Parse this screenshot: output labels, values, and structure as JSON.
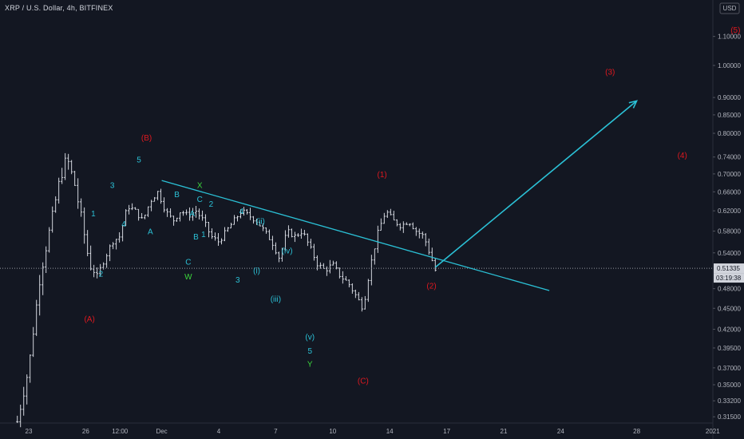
{
  "title": "XRP / U.S. Dollar, 4h, BITFINEX",
  "currency_button": "USD",
  "colors": {
    "background": "#131722",
    "candle": "#d1d4dc",
    "trendline": "#2bc1d6",
    "wave_red": "#e0181f",
    "wave_cyan": "#2bc1d6",
    "wave_green": "#3bd63b",
    "axis_text": "#b2b5be"
  },
  "chart_data": {
    "type": "candlestick",
    "y_scale": "log",
    "ylim": [
      0.3086,
      1.24
    ],
    "x_ticks": [
      {
        "label": "23",
        "t": 3
      },
      {
        "label": "26",
        "t": 18
      },
      {
        "label": "12:00",
        "t": 27
      },
      {
        "label": "Dec",
        "t": 38
      },
      {
        "label": "4",
        "t": 53
      },
      {
        "label": "7",
        "t": 68
      },
      {
        "label": "10",
        "t": 83
      },
      {
        "label": "14",
        "t": 98
      },
      {
        "label": "17",
        "t": 113
      },
      {
        "label": "21",
        "t": 128
      },
      {
        "label": "24",
        "t": 143
      },
      {
        "label": "28",
        "t": 163
      },
      {
        "label": "2021",
        "t": 183
      }
    ],
    "y_ticks": [
      "1.10000",
      "1.00000",
      "0.90000",
      "0.85000",
      "0.80000",
      "0.74000",
      "0.70000",
      "0.66000",
      "0.62000",
      "0.58000",
      "0.54000",
      "0.48000",
      "0.45000",
      "0.42000",
      "0.39500",
      "0.37000",
      "0.35000",
      "0.33200",
      "0.31500"
    ],
    "current_price": "0.51335",
    "countdown": "03:19:38",
    "candle_count": 132,
    "path": [
      [
        0,
        0.31
      ],
      [
        3,
        0.37
      ],
      [
        6,
        0.5
      ],
      [
        9,
        0.6
      ],
      [
        11,
        0.68
      ],
      [
        13,
        0.74
      ],
      [
        15,
        0.68
      ],
      [
        17,
        0.6
      ],
      [
        19,
        0.52
      ],
      [
        21,
        0.5
      ],
      [
        23,
        0.53
      ],
      [
        25,
        0.56
      ],
      [
        27,
        0.57
      ],
      [
        29,
        0.63
      ],
      [
        31,
        0.62
      ],
      [
        33,
        0.6
      ],
      [
        35,
        0.64
      ],
      [
        37,
        0.66
      ],
      [
        39,
        0.62
      ],
      [
        41,
        0.6
      ],
      [
        43,
        0.62
      ],
      [
        45,
        0.61
      ],
      [
        47,
        0.62
      ],
      [
        49,
        0.6
      ],
      [
        51,
        0.57
      ],
      [
        53,
        0.56
      ],
      [
        55,
        0.58
      ],
      [
        57,
        0.6
      ],
      [
        59,
        0.62
      ],
      [
        61,
        0.61
      ],
      [
        63,
        0.6
      ],
      [
        65,
        0.58
      ],
      [
        67,
        0.56
      ],
      [
        69,
        0.53
      ],
      [
        71,
        0.58
      ],
      [
        73,
        0.57
      ],
      [
        75,
        0.58
      ],
      [
        77,
        0.55
      ],
      [
        79,
        0.52
      ],
      [
        81,
        0.51
      ],
      [
        83,
        0.52
      ],
      [
        85,
        0.5
      ],
      [
        87,
        0.49
      ],
      [
        89,
        0.47
      ],
      [
        91,
        0.45
      ],
      [
        93,
        0.52
      ],
      [
        95,
        0.58
      ],
      [
        97,
        0.62
      ],
      [
        99,
        0.6
      ],
      [
        101,
        0.59
      ],
      [
        103,
        0.6
      ],
      [
        105,
        0.58
      ],
      [
        107,
        0.57
      ],
      [
        109,
        0.53
      ],
      [
        110,
        0.51
      ]
    ],
    "trendline": [
      {
        "t": 38,
        "price": 0.685
      },
      {
        "t": 140,
        "price": 0.477
      }
    ],
    "arrow": [
      {
        "t": 110,
        "price": 0.515
      },
      {
        "t": 163,
        "price": 0.89
      }
    ],
    "wave_labels": [
      {
        "text": "(B)",
        "t": 34,
        "price": 0.79,
        "color": "red"
      },
      {
        "text": "(A)",
        "t": 19,
        "price": 0.435,
        "color": "red"
      },
      {
        "text": "(C)",
        "t": 91,
        "price": 0.355,
        "color": "red"
      },
      {
        "text": "(1)",
        "t": 96,
        "price": 0.7,
        "color": "red"
      },
      {
        "text": "(2)",
        "t": 109,
        "price": 0.485,
        "color": "red"
      },
      {
        "text": "(3)",
        "t": 156,
        "price": 0.98,
        "color": "red"
      },
      {
        "text": "(4)",
        "t": 175,
        "price": 0.745,
        "color": "red"
      },
      {
        "text": "(5)",
        "t": 189,
        "price": 1.125,
        "color": "red"
      },
      {
        "text": "1",
        "t": 20,
        "price": 0.615,
        "color": "cyan"
      },
      {
        "text": "2",
        "t": 22,
        "price": 0.505,
        "color": "cyan"
      },
      {
        "text": "3",
        "t": 25,
        "price": 0.675,
        "color": "cyan"
      },
      {
        "text": "4",
        "t": 28,
        "price": 0.595,
        "color": "cyan"
      },
      {
        "text": "5",
        "t": 32,
        "price": 0.735,
        "color": "cyan"
      },
      {
        "text": "A",
        "t": 35,
        "price": 0.58,
        "color": "cyan"
      },
      {
        "text": "B",
        "t": 42,
        "price": 0.655,
        "color": "cyan"
      },
      {
        "text": "A",
        "t": 46,
        "price": 0.615,
        "color": "cyan"
      },
      {
        "text": "B",
        "t": 47,
        "price": 0.57,
        "color": "cyan"
      },
      {
        "text": "C",
        "t": 45,
        "price": 0.525,
        "color": "cyan"
      },
      {
        "text": "W",
        "t": 45,
        "price": 0.5,
        "color": "green"
      },
      {
        "text": "X",
        "t": 48,
        "price": 0.675,
        "color": "green"
      },
      {
        "text": "C",
        "t": 48,
        "price": 0.645,
        "color": "cyan"
      },
      {
        "text": "2",
        "t": 51,
        "price": 0.635,
        "color": "cyan"
      },
      {
        "text": "1",
        "t": 49,
        "price": 0.575,
        "color": "cyan"
      },
      {
        "text": "4",
        "t": 59,
        "price": 0.62,
        "color": "cyan"
      },
      {
        "text": "3",
        "t": 58,
        "price": 0.495,
        "color": "cyan"
      },
      {
        "text": "(ii)",
        "t": 64,
        "price": 0.6,
        "color": "cyan"
      },
      {
        "text": "(i)",
        "t": 63,
        "price": 0.51,
        "color": "cyan"
      },
      {
        "text": "(iv)",
        "t": 71,
        "price": 0.545,
        "color": "cyan"
      },
      {
        "text": "(iii)",
        "t": 68,
        "price": 0.465,
        "color": "cyan"
      },
      {
        "text": "(v)",
        "t": 77,
        "price": 0.41,
        "color": "cyan"
      },
      {
        "text": "5",
        "t": 77,
        "price": 0.392,
        "color": "cyan"
      },
      {
        "text": "Y",
        "t": 77,
        "price": 0.375,
        "color": "green"
      }
    ]
  }
}
